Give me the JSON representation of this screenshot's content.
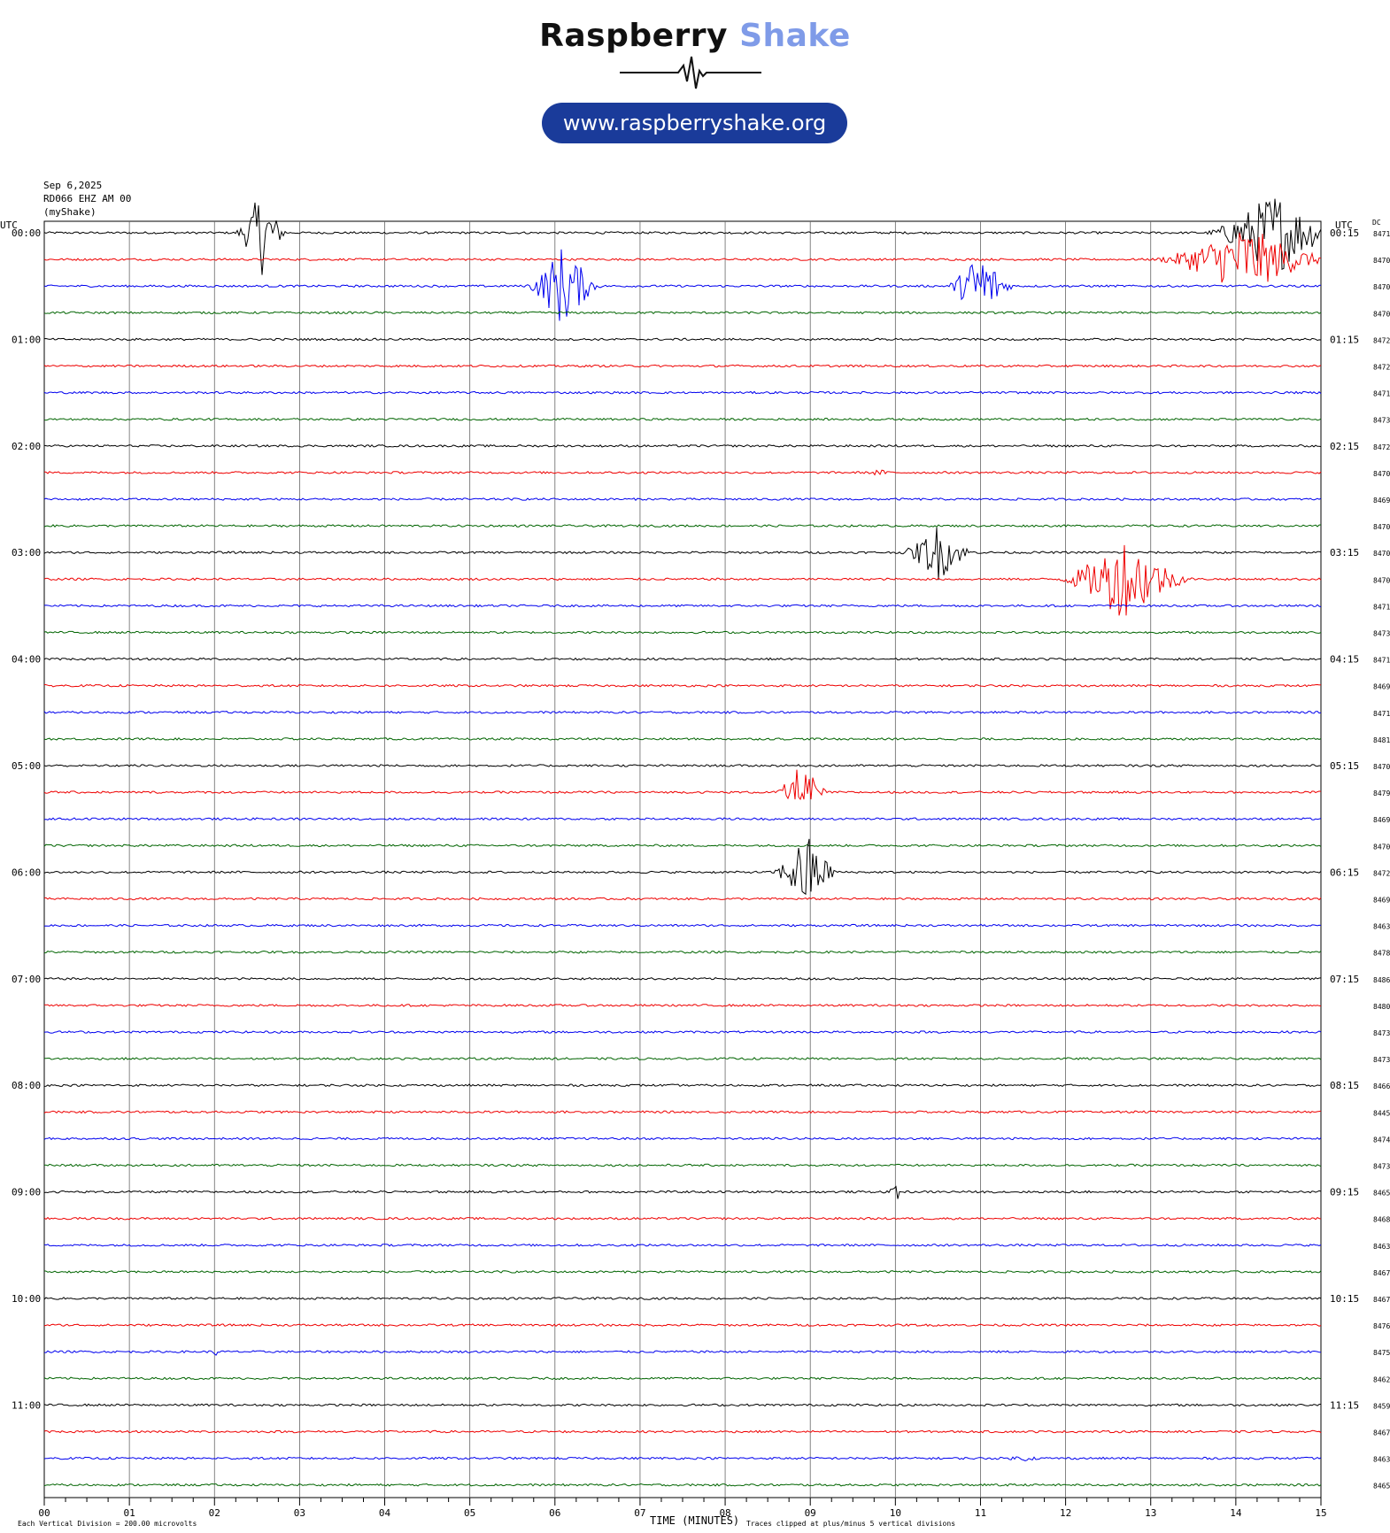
{
  "header": {
    "brand_word1": "Raspberry",
    "brand_word2": "Shake",
    "website": "www.raspberryshake.org",
    "date": "Sep 6,2025",
    "station": "RD066 EHZ AM 00",
    "source": "(myShake)"
  },
  "axis": {
    "left_header": "UTC",
    "right_header": "UTC",
    "dc_header": "DC",
    "xlabel": "TIME (MINUTES)",
    "x_ticks": [
      "00",
      "01",
      "02",
      "03",
      "04",
      "05",
      "06",
      "07",
      "08",
      "09",
      "10",
      "11",
      "12",
      "13",
      "14",
      "15"
    ],
    "footer_left": "Each Vertical Division =  200.00 microvolts",
    "footer_right": "Traces clipped at plus/minus 5 vertical divisions"
  },
  "chart_data": {
    "type": "line",
    "title": "",
    "xlabel": "TIME (MINUTES)",
    "xlim": [
      0,
      15
    ],
    "trace_minutes": 15,
    "colors": [
      "#000000",
      "#ee0000",
      "#0000ee",
      "#006400"
    ],
    "left_labels": [
      "00:00",
      "01:00",
      "02:00",
      "03:00",
      "04:00",
      "05:00",
      "06:00",
      "07:00",
      "08:00",
      "09:00",
      "10:00",
      "11:00"
    ],
    "right_labels": [
      "00:15",
      "01:15",
      "02:15",
      "03:15",
      "04:15",
      "05:15",
      "06:15",
      "07:15",
      "08:15",
      "09:15",
      "10:15",
      "11:15"
    ],
    "dc_values": [
      "8471",
      "8470",
      "8470",
      "8470",
      "8472",
      "8472",
      "8471",
      "8473",
      "8472",
      "8470",
      "8469",
      "8470",
      "8470",
      "8470",
      "8471",
      "8473",
      "8471",
      "8469",
      "8471",
      "8481",
      "8470",
      "8479",
      "8469",
      "8470",
      "8472",
      "8469",
      "8463",
      "8478",
      "8486",
      "8480",
      "8473",
      "8473",
      "8466",
      "8445",
      "8474",
      "8473",
      "8465",
      "8468",
      "8463",
      "8467",
      "8467",
      "8476",
      "8475",
      "8462",
      "8459",
      "8467",
      "8463",
      "8465"
    ],
    "events": [
      {
        "line": 0,
        "minute": 2.55,
        "amp_up": 5.0,
        "amp_down": 5.0,
        "width": 0.35
      },
      {
        "line": 0,
        "minute": 14.45,
        "amp_up": 5.0,
        "amp_down": 5.0,
        "width": 0.9
      },
      {
        "line": 1,
        "minute": 14.1,
        "amp_up": 4.0,
        "amp_down": 4.0,
        "width": 1.2
      },
      {
        "line": 2,
        "minute": 6.1,
        "amp_up": 5.0,
        "amp_down": 5.0,
        "width": 0.5
      },
      {
        "line": 2,
        "minute": 11.0,
        "amp_up": 4.5,
        "amp_down": 2.8,
        "width": 0.45
      },
      {
        "line": 9,
        "minute": 9.8,
        "amp_up": 0.4,
        "amp_down": 0.4,
        "width": 0.25
      },
      {
        "line": 12,
        "minute": 10.5,
        "amp_up": 3.3,
        "amp_down": 3.3,
        "width": 0.5
      },
      {
        "line": 13,
        "minute": 12.7,
        "amp_up": 5.0,
        "amp_down": 4.1,
        "width": 0.9
      },
      {
        "line": 21,
        "minute": 8.9,
        "amp_up": 3.6,
        "amp_down": 0.8,
        "width": 0.35
      },
      {
        "line": 24,
        "minute": 8.95,
        "amp_up": 4.0,
        "amp_down": 4.6,
        "width": 0.45
      },
      {
        "line": 36,
        "minute": 10.0,
        "amp_up": 1.9,
        "amp_down": 2.0,
        "width": 0.08
      },
      {
        "line": 42,
        "minute": 2.0,
        "amp_up": 0.6,
        "amp_down": 0.9,
        "width": 0.06
      },
      {
        "line": 46,
        "minute": 11.5,
        "amp_up": 0.35,
        "amp_down": 0.35,
        "width": 0.4
      },
      {
        "line": 47,
        "minute": 11.2,
        "amp_up": 0.1,
        "amp_down": 1.8,
        "width": 0.05
      }
    ]
  }
}
